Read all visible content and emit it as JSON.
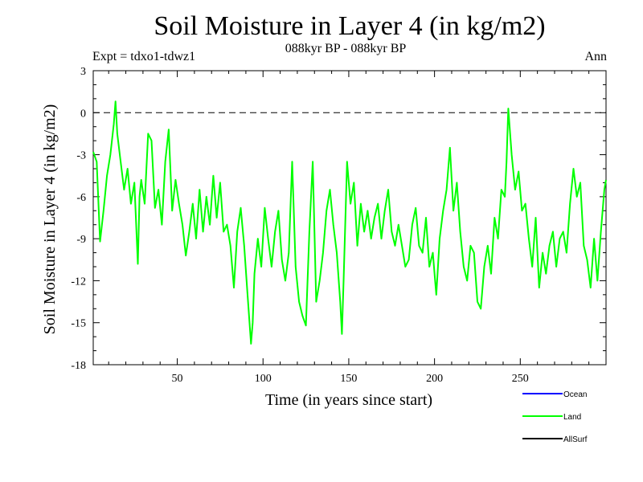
{
  "header": {
    "title": "Soil Moisture in Layer 4 (in kg/m2)",
    "subtitle": "088kyr BP - 088kyr BP",
    "expt": "Expt = tdxo1-tdwz1",
    "season": "Ann"
  },
  "colors": {
    "ocean": "#0000ff",
    "land": "#00ff00",
    "allsurf": "#000000",
    "zero_line": "#000000"
  },
  "chart_data": {
    "type": "line",
    "title": "Soil Moisture in Layer 4 (in kg/m2)",
    "xlabel": "Time (in years since start)",
    "ylabel": "Soil Moisture in Layer 4 (in kg/m2)",
    "xlim": [
      1,
      300
    ],
    "ylim": [
      -18,
      3
    ],
    "xticks": [
      50,
      100,
      150,
      200,
      250
    ],
    "yticks": [
      3,
      0,
      -3,
      -6,
      -9,
      -12,
      -15,
      -18
    ],
    "reference_line": {
      "y": 0,
      "style": "dashed"
    },
    "legend": {
      "position": "bottom-right",
      "entries": [
        {
          "name": "Ocean",
          "color": "#0000ff"
        },
        {
          "name": "Land",
          "color": "#00ff00"
        },
        {
          "name": "AllSurf",
          "color": "#000000"
        }
      ]
    },
    "series": [
      {
        "name": "Land",
        "color": "#00ff00",
        "x": [
          1,
          3,
          5,
          7,
          9,
          11,
          13,
          14,
          15,
          17,
          19,
          21,
          23,
          25,
          27,
          28,
          29,
          31,
          33,
          35,
          37,
          39,
          41,
          43,
          45,
          47,
          49,
          51,
          53,
          55,
          57,
          59,
          61,
          63,
          65,
          67,
          69,
          71,
          73,
          75,
          77,
          79,
          81,
          83,
          85,
          87,
          89,
          91,
          93,
          94,
          95,
          97,
          99,
          101,
          103,
          105,
          107,
          109,
          111,
          113,
          115,
          117,
          119,
          121,
          123,
          125,
          127,
          129,
          131,
          133,
          135,
          137,
          139,
          141,
          143,
          145,
          146,
          147,
          149,
          151,
          153,
          155,
          157,
          159,
          161,
          163,
          165,
          167,
          169,
          171,
          173,
          175,
          177,
          179,
          181,
          183,
          185,
          187,
          189,
          191,
          193,
          195,
          197,
          199,
          201,
          203,
          205,
          207,
          209,
          211,
          213,
          215,
          217,
          219,
          221,
          223,
          225,
          227,
          229,
          231,
          233,
          235,
          237,
          239,
          241,
          242,
          243,
          245,
          247,
          249,
          251,
          253,
          255,
          257,
          259,
          261,
          263,
          265,
          267,
          269,
          271,
          273,
          275,
          277,
          279,
          281,
          283,
          285,
          287,
          289,
          291,
          293,
          295,
          297,
          299,
          300
        ],
        "y": [
          -2.8,
          -3.5,
          -9.2,
          -7.0,
          -4.5,
          -3.0,
          -0.8,
          0.8,
          -1.5,
          -3.5,
          -5.5,
          -4.0,
          -6.5,
          -5.0,
          -10.8,
          -6.0,
          -4.8,
          -6.5,
          -1.5,
          -2.0,
          -6.8,
          -5.5,
          -8.0,
          -3.5,
          -1.2,
          -7.0,
          -4.8,
          -6.5,
          -8.0,
          -10.2,
          -8.5,
          -6.5,
          -9.0,
          -5.5,
          -8.5,
          -6.0,
          -8.0,
          -4.5,
          -7.5,
          -5.0,
          -8.5,
          -8.0,
          -9.5,
          -12.5,
          -8.5,
          -6.8,
          -9.5,
          -13.0,
          -16.5,
          -15.0,
          -11.5,
          -9.0,
          -11.0,
          -6.8,
          -9.0,
          -11.0,
          -8.5,
          -7.0,
          -10.5,
          -12.0,
          -10.0,
          -3.5,
          -11.0,
          -13.5,
          -14.5,
          -15.2,
          -8.5,
          -3.5,
          -13.5,
          -12.0,
          -10.0,
          -7.0,
          -5.5,
          -8.0,
          -10.0,
          -13.5,
          -15.8,
          -12.0,
          -3.5,
          -6.5,
          -5.0,
          -9.5,
          -6.5,
          -8.5,
          -7.0,
          -9.0,
          -7.5,
          -6.5,
          -9.0,
          -7.0,
          -5.5,
          -8.5,
          -9.5,
          -8.0,
          -9.5,
          -11.0,
          -10.5,
          -8.0,
          -6.8,
          -9.5,
          -10.0,
          -7.5,
          -11.0,
          -10.0,
          -13.0,
          -9.0,
          -7.0,
          -5.5,
          -2.5,
          -7.0,
          -5.0,
          -8.5,
          -11.0,
          -12.0,
          -9.5,
          -10.0,
          -13.5,
          -14.0,
          -11.0,
          -9.5,
          -11.5,
          -7.5,
          -9.0,
          -5.5,
          -6.0,
          -3.5,
          0.3,
          -3.0,
          -5.5,
          -4.2,
          -7.0,
          -6.5,
          -9.0,
          -11.0,
          -7.5,
          -12.5,
          -10.0,
          -11.5,
          -9.5,
          -8.5,
          -11.0,
          -9.0,
          -8.5,
          -10.0,
          -6.5,
          -4.0,
          -6.0,
          -5.0,
          -9.5,
          -10.5,
          -12.5,
          -9.0,
          -12.0,
          -8.5,
          -5.5,
          -4.8
        ]
      }
    ]
  }
}
